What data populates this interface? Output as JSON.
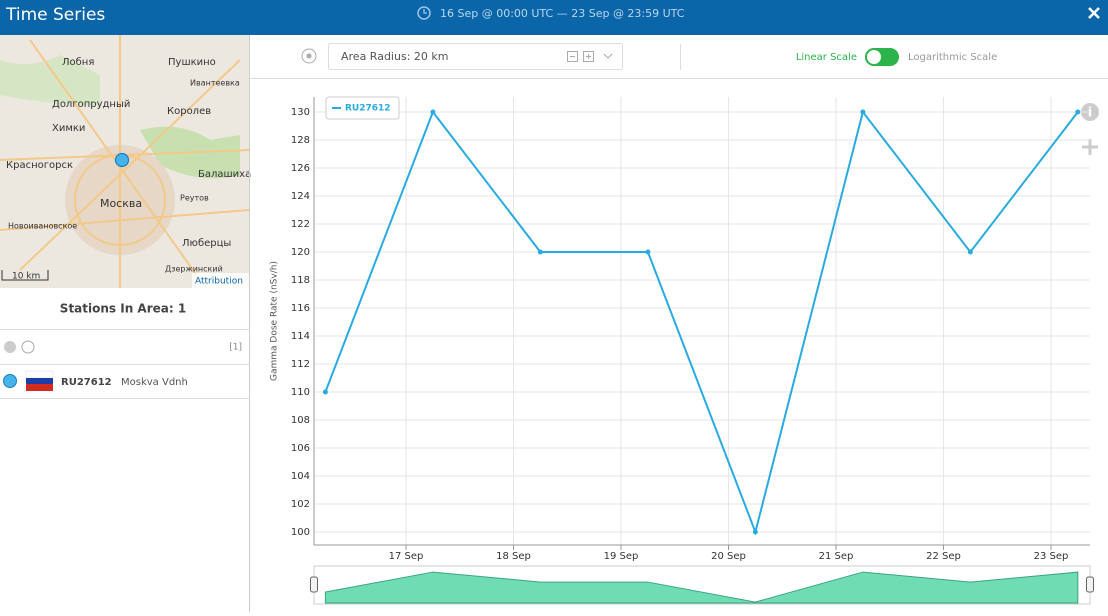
{
  "header": {
    "title": "Time Series",
    "range": "16 Sep @ 00:00 UTC  —  23 Sep @ 23:59 UTC"
  },
  "map": {
    "labels": [
      "Лобня",
      "Пушкино",
      "Ивантеевка",
      "Долгопрудный",
      "Королев",
      "Химки",
      "Красногорск",
      "Балашиха",
      "Реутов",
      "Москва",
      "Новоивановское",
      "Люберцы",
      "Дзержинский"
    ],
    "scale": "10 km",
    "attribution": "Attribution"
  },
  "stations": {
    "title": "Stations In Area: 1",
    "count": "[1]",
    "items": [
      {
        "id": "RU27612",
        "name": "Moskva Vdnh"
      }
    ]
  },
  "controls": {
    "radius": "Area Radius: 20 km",
    "linear": "Linear Scale",
    "log": "Logarithmic Scale"
  },
  "chart_data": {
    "type": "line",
    "y_label": "Gamma Dose Rate (nSv/h)",
    "x": [
      16.25,
      17.25,
      18.25,
      19.25,
      20.25,
      21.25,
      22.25,
      23.25
    ],
    "xlim": [
      16.144,
      23.363
    ],
    "xticks": [
      {
        "value": 17,
        "label": "17 Sep"
      },
      {
        "value": 18,
        "label": "18 Sep"
      },
      {
        "value": 19,
        "label": "19 Sep"
      },
      {
        "value": 20,
        "label": "20 Sep"
      },
      {
        "value": 21,
        "label": "21 Sep"
      },
      {
        "value": 22,
        "label": "22 Sep"
      },
      {
        "value": 23,
        "label": "23 Sep"
      }
    ],
    "series": [
      {
        "name": "RU27612",
        "color": "#29abe2",
        "values": [
          110,
          130,
          120,
          120,
          100,
          130,
          120,
          130
        ]
      }
    ],
    "ylim": [
      99.07,
      131.07
    ],
    "yticks": [
      100,
      102,
      104,
      106,
      108,
      110,
      112,
      114,
      116,
      118,
      120,
      122,
      124,
      126,
      128,
      130
    ],
    "grid": true,
    "log_scale": false
  }
}
